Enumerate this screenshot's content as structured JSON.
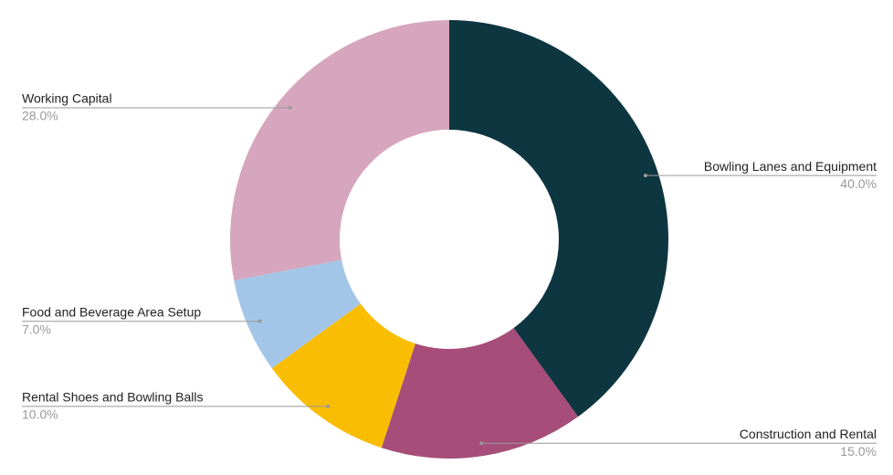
{
  "chart_data": {
    "type": "donut",
    "categories": [
      "Bowling Lanes and Equipment",
      "Construction and Rental",
      "Rental Shoes and Bowling Balls",
      "Food and Beverage Area Setup",
      "Working Capital"
    ],
    "values": [
      40,
      15,
      10,
      7,
      28
    ],
    "value_labels": [
      "40.0%",
      "15.0%",
      "10.0%",
      "7.0%",
      "28.0%"
    ],
    "colors": [
      "#0e3640",
      "#a64d79",
      "#f9bd04",
      "#a3c6e8",
      "#d5a6bd"
    ]
  }
}
